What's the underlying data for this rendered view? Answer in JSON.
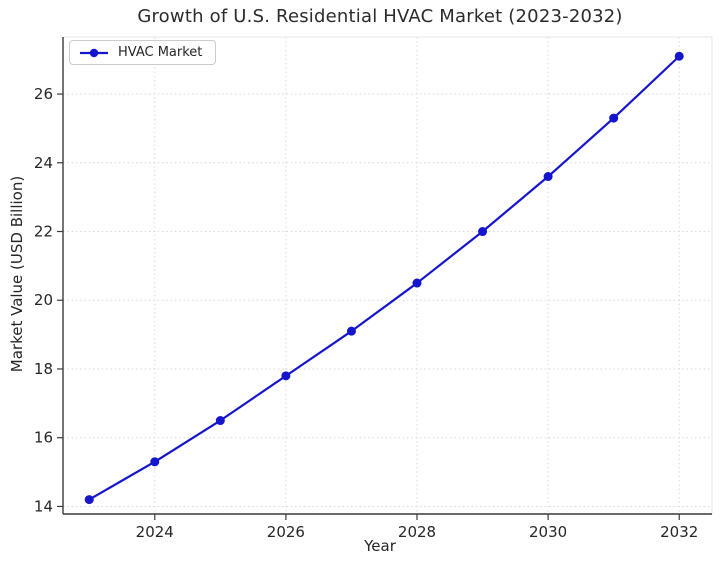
{
  "chart_data": {
    "type": "line",
    "title": "Growth of U.S. Residential HVAC Market (2023-2032)",
    "xlabel": "Year",
    "ylabel": "Market Value (USD Billion)",
    "x": [
      2023,
      2024,
      2025,
      2026,
      2027,
      2028,
      2029,
      2030,
      2031,
      2032
    ],
    "series": [
      {
        "name": "HVAC Market",
        "values": [
          14.2,
          15.3,
          16.5,
          17.8,
          19.1,
          20.5,
          22.0,
          23.6,
          25.3,
          27.1
        ],
        "color": "#1515cd",
        "marker": "circle"
      }
    ],
    "xlim": [
      2022.6,
      2032.5
    ],
    "ylim": [
      13.78,
      27.66
    ],
    "xticks": [
      2024,
      2026,
      2028,
      2030,
      2032
    ],
    "yticks": [
      14,
      16,
      18,
      20,
      22,
      24,
      26
    ],
    "grid": true,
    "grid_style": "dotted",
    "legend_position": "upper left",
    "colors": {
      "line": "#1515cd",
      "grid": "#d8d8d8",
      "spine_dark": "#3a3a3a",
      "spine_light": "#e4e4e4",
      "tick_text": "#262626",
      "legend_border": "#cccccc",
      "background": "#ffffff"
    }
  }
}
